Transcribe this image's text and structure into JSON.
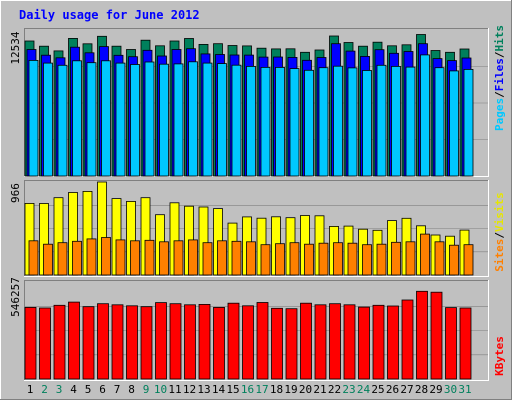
{
  "chart_data": [
    {
      "panel": "hits-files-pages",
      "type": "bar",
      "title": "Daily usage for June 2012",
      "categories": [
        "1",
        "2",
        "3",
        "4",
        "5",
        "6",
        "7",
        "8",
        "9",
        "10",
        "11",
        "12",
        "13",
        "14",
        "15",
        "16",
        "17",
        "18",
        "19",
        "20",
        "21",
        "22",
        "23",
        "24",
        "25",
        "26",
        "27",
        "28",
        "29",
        "30",
        "31"
      ],
      "ymax_label": "12534",
      "ylim": [
        0,
        12534
      ],
      "legend": [
        "Pages",
        "Files",
        "Hits"
      ],
      "series": [
        {
          "name": "Hits",
          "color": "#00805c",
          "values": [
            11590,
            11140,
            10740,
            11810,
            11350,
            11990,
            11140,
            10860,
            11660,
            11180,
            11590,
            11800,
            11300,
            11360,
            11200,
            11170,
            10970,
            10910,
            10920,
            10620,
            10820,
            12020,
            11460,
            11140,
            11490,
            11180,
            11260,
            12150,
            10770,
            10620,
            10900
          ]
        },
        {
          "name": "Files",
          "color": "#0000ff",
          "values": [
            10860,
            10370,
            10150,
            11060,
            10580,
            11110,
            10360,
            10240,
            10790,
            10300,
            10860,
            10930,
            10480,
            10430,
            10390,
            10380,
            10210,
            10220,
            10180,
            9930,
            10170,
            11360,
            10720,
            10270,
            10840,
            10530,
            10690,
            11360,
            10080,
            9910,
            10130
          ]
        },
        {
          "name": "Pages",
          "color": "#00c8ff",
          "values": [
            9920,
            9690,
            9500,
            9890,
            9730,
            9890,
            9690,
            9570,
            9790,
            9600,
            9620,
            9800,
            9690,
            9650,
            9510,
            9410,
            9320,
            9320,
            9220,
            9070,
            9300,
            9430,
            9280,
            9060,
            9500,
            9410,
            9350,
            10400,
            9300,
            9020,
            9150
          ]
        }
      ]
    },
    {
      "panel": "visits-sites",
      "type": "bar",
      "categories": [
        "1",
        "2",
        "3",
        "4",
        "5",
        "6",
        "7",
        "8",
        "9",
        "10",
        "11",
        "12",
        "13",
        "14",
        "15",
        "16",
        "17",
        "18",
        "19",
        "20",
        "21",
        "22",
        "23",
        "24",
        "25",
        "26",
        "27",
        "28",
        "29",
        "30",
        "31"
      ],
      "ymax_label": "966",
      "ylim": [
        0,
        966
      ],
      "legend": [
        "Sites",
        "Visits"
      ],
      "series": [
        {
          "name": "Visits",
          "color": "#ffff00",
          "values": [
            744,
            743,
            803,
            857,
            868,
            966,
            794,
            764,
            803,
            626,
            750,
            715,
            706,
            690,
            539,
            604,
            590,
            605,
            595,
            618,
            615,
            505,
            508,
            476,
            464,
            565,
            589,
            511,
            415,
            403,
            466
          ]
        },
        {
          "name": "Sites",
          "color": "#ff8000",
          "values": [
            355,
            320,
            335,
            350,
            375,
            390,
            365,
            355,
            360,
            345,
            355,
            365,
            335,
            355,
            350,
            345,
            315,
            325,
            335,
            320,
            330,
            335,
            330,
            315,
            320,
            340,
            345,
            425,
            345,
            310,
            315
          ]
        }
      ]
    },
    {
      "panel": "kbytes",
      "type": "bar",
      "categories": [
        "1",
        "2",
        "3",
        "4",
        "5",
        "6",
        "7",
        "8",
        "9",
        "10",
        "11",
        "12",
        "13",
        "14",
        "15",
        "16",
        "17",
        "18",
        "19",
        "20",
        "21",
        "22",
        "23",
        "24",
        "25",
        "26",
        "27",
        "28",
        "29",
        "30",
        "31"
      ],
      "ymax_label": "546257",
      "ylim": [
        0,
        546257
      ],
      "legend": [
        "KBytes"
      ],
      "series": [
        {
          "name": "KBytes",
          "color": "#ff0000",
          "values": [
            403000,
            400000,
            415000,
            433000,
            407000,
            424000,
            418000,
            412000,
            407000,
            430000,
            424000,
            418000,
            420000,
            403000,
            427000,
            412000,
            431000,
            398000,
            396000,
            427000,
            418000,
            424000,
            418000,
            405000,
            415000,
            411000,
            445000,
            494000,
            489000,
            402000,
            400000
          ]
        }
      ]
    }
  ],
  "x_label_colors": {
    "weekday": "#000000",
    "weekend": "#00805c"
  },
  "weekend_days": [
    2,
    3,
    9,
    10,
    16,
    17,
    23,
    24,
    30,
    31
  ],
  "colors": {
    "background": "#c0c0c0",
    "border_dark": "#808080",
    "border_light": "#ffffff",
    "title": "#0000ff"
  }
}
